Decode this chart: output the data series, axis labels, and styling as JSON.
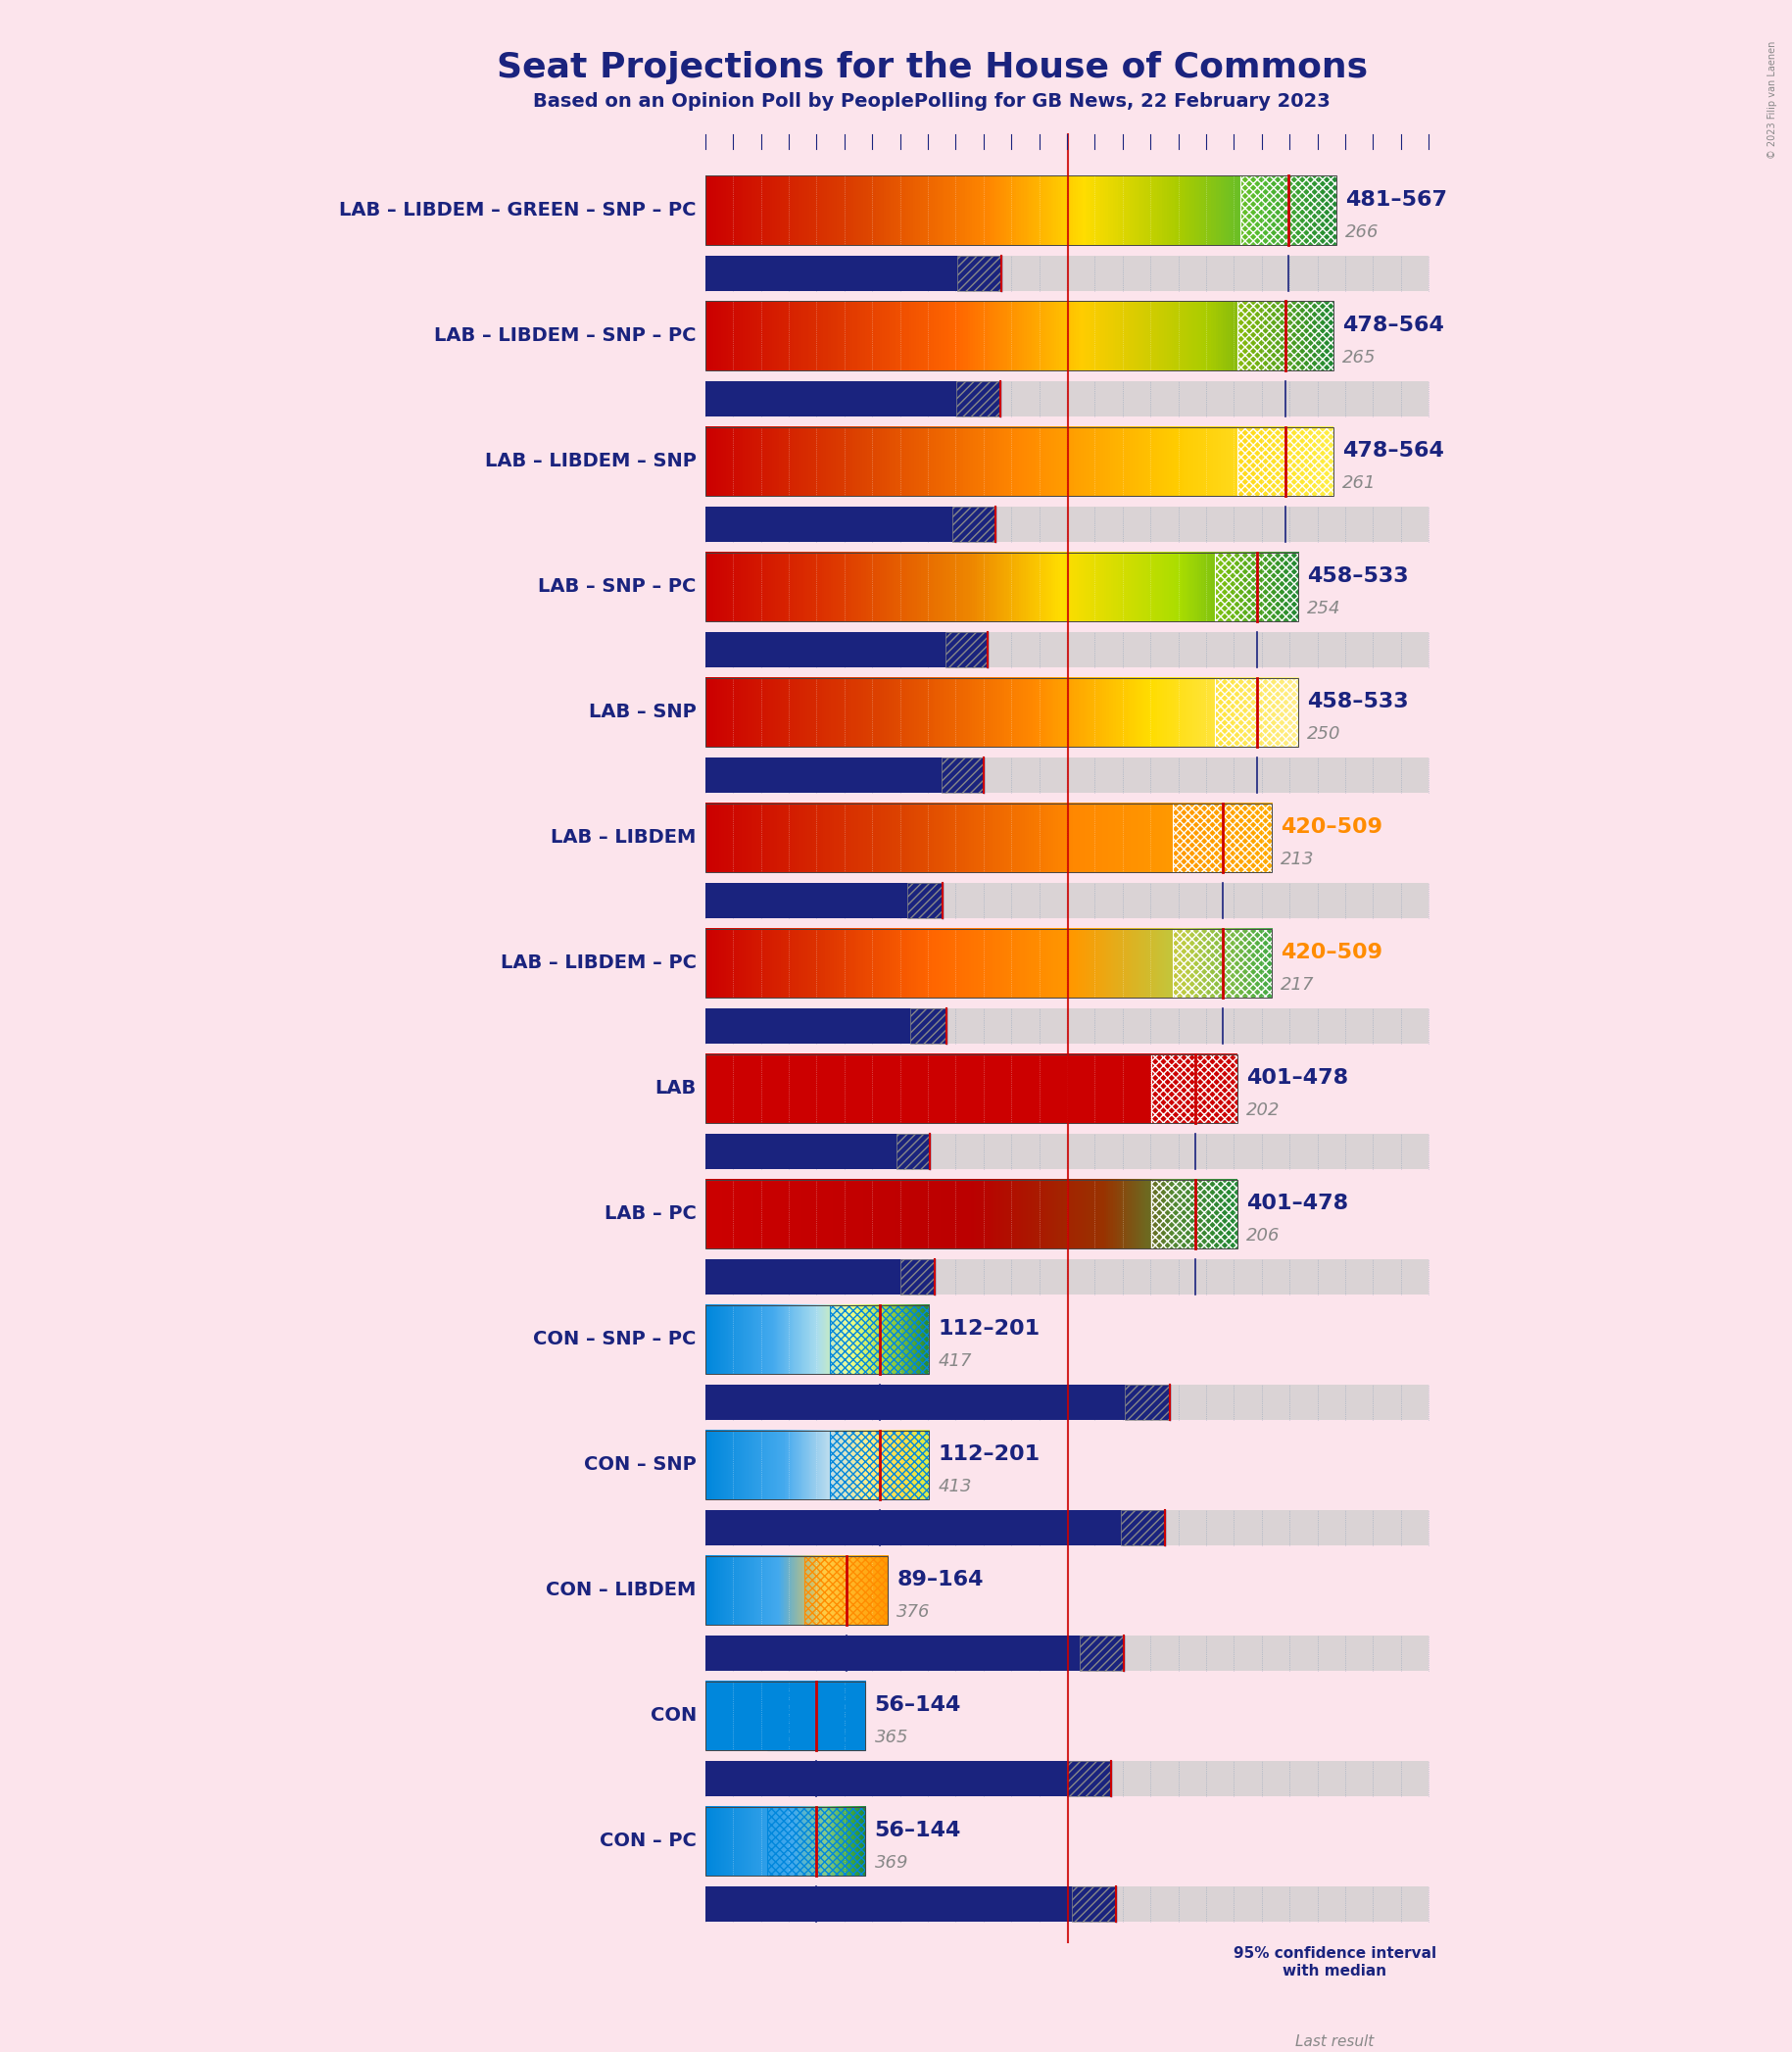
{
  "title": "Seat Projections for the House of Commons",
  "subtitle": "Based on an Opinion Poll by PeoplePolling for GB News, 22 February 2023",
  "copyright": "© 2023 Filip van Laenen",
  "background_color": "#fce4ec",
  "title_color": "#1a237e",
  "subtitle_color": "#1a237e",
  "majority": 326,
  "xlim_max": 650,
  "coalitions": [
    {
      "label": "LAB – LIBDEM – GREEN – SNP – PC",
      "range_min": 481,
      "range_max": 567,
      "median": 524,
      "last_result": 266,
      "gradient_type": "lab_green_snp",
      "hatch_color": "#ffffff",
      "range_label_color": "#1a237e",
      "last_result_color": "#888888"
    },
    {
      "label": "LAB – LIBDEM – SNP – PC",
      "range_min": 478,
      "range_max": 564,
      "median": 521,
      "last_result": 265,
      "gradient_type": "lab_snp_pc",
      "hatch_color": "#ffffff",
      "range_label_color": "#1a237e",
      "last_result_color": "#888888"
    },
    {
      "label": "LAB – LIBDEM – SNP",
      "range_min": 478,
      "range_max": 564,
      "median": 521,
      "last_result": 261,
      "gradient_type": "lab_libdem_snp",
      "hatch_color": "#ffffff",
      "range_label_color": "#1a237e",
      "last_result_color": "#888888"
    },
    {
      "label": "LAB – SNP – PC",
      "range_min": 458,
      "range_max": 533,
      "median": 496,
      "last_result": 254,
      "gradient_type": "lab_snp_pc2",
      "hatch_color": "#ffffff",
      "range_label_color": "#1a237e",
      "last_result_color": "#888888"
    },
    {
      "label": "LAB – SNP",
      "range_min": 458,
      "range_max": 533,
      "median": 496,
      "last_result": 250,
      "gradient_type": "lab_snp_only",
      "hatch_color": "#ffffff",
      "range_label_color": "#1a237e",
      "last_result_color": "#888888"
    },
    {
      "label": "LAB – LIBDEM",
      "range_min": 420,
      "range_max": 509,
      "median": 465,
      "last_result": 213,
      "gradient_type": "lab_libdem",
      "hatch_color": "#ffffff",
      "range_label_color": "#ff8c00",
      "last_result_color": "#888888"
    },
    {
      "label": "LAB – LIBDEM – PC",
      "range_min": 420,
      "range_max": 509,
      "median": 465,
      "last_result": 217,
      "gradient_type": "lab_libdem_pc",
      "hatch_color": "#ffffff",
      "range_label_color": "#ff8c00",
      "last_result_color": "#888888"
    },
    {
      "label": "LAB",
      "range_min": 401,
      "range_max": 478,
      "median": 440,
      "last_result": 202,
      "gradient_type": "lab_only",
      "hatch_color": "#ffffff",
      "range_label_color": "#1a237e",
      "last_result_color": "#888888"
    },
    {
      "label": "LAB – PC",
      "range_min": 401,
      "range_max": 478,
      "median": 440,
      "last_result": 206,
      "gradient_type": "lab_pc",
      "hatch_color": "#ffffff",
      "range_label_color": "#1a237e",
      "last_result_color": "#888888"
    },
    {
      "label": "CON – SNP – PC",
      "range_min": 112,
      "range_max": 201,
      "median": 157,
      "last_result": 417,
      "gradient_type": "con_snp_pc",
      "hatch_color": "#0087dc",
      "range_label_color": "#1a237e",
      "last_result_color": "#888888"
    },
    {
      "label": "CON – SNP",
      "range_min": 112,
      "range_max": 201,
      "median": 157,
      "last_result": 413,
      "gradient_type": "con_snp",
      "hatch_color": "#0087dc",
      "range_label_color": "#1a237e",
      "last_result_color": "#888888"
    },
    {
      "label": "CON – LIBDEM",
      "range_min": 89,
      "range_max": 164,
      "median": 127,
      "last_result": 376,
      "gradient_type": "con_libdem",
      "hatch_color": "#ff8c00",
      "range_label_color": "#1a237e",
      "last_result_color": "#888888"
    },
    {
      "label": "CON",
      "range_min": 56,
      "range_max": 144,
      "median": 100,
      "last_result": 365,
      "gradient_type": "con_only",
      "hatch_color": "#0087dc",
      "range_label_color": "#1a237e",
      "last_result_color": "#888888"
    },
    {
      "label": "CON – PC",
      "range_min": 56,
      "range_max": 144,
      "median": 100,
      "last_result": 369,
      "gradient_type": "con_pc",
      "hatch_color": "#0087dc",
      "range_label_color": "#1a237e",
      "last_result_color": "#888888"
    }
  ]
}
